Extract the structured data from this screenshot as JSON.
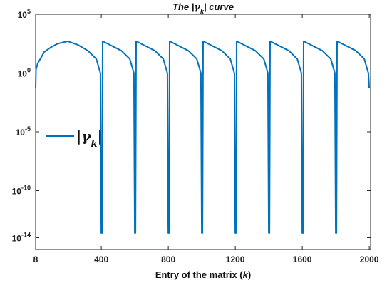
{
  "chart_data": {
    "type": "line",
    "title": {
      "prefix": "The |",
      "symbol": "γ",
      "subscript": "k",
      "suffix": "| curve"
    },
    "xlabel": {
      "prefix": "Entry of the matrix (",
      "symbol": "k",
      "suffix": ")"
    },
    "ylabel": "",
    "y_scale": "log",
    "xlim": [
      8,
      2008
    ],
    "ylim_exponent": [
      -15,
      5
    ],
    "x_ticks": [
      {
        "value": 8,
        "label": "8"
      },
      {
        "value": 400,
        "label": "400"
      },
      {
        "value": 800,
        "label": "800"
      },
      {
        "value": 1200,
        "label": "1200"
      },
      {
        "value": 1600,
        "label": "1600"
      },
      {
        "value": 2000,
        "label": "2000"
      }
    ],
    "y_ticks": [
      {
        "exponent": 5,
        "label": "5"
      },
      {
        "exponent": 0,
        "label": "0"
      },
      {
        "exponent": -5,
        "label": "-5"
      },
      {
        "exponent": -10,
        "label": "-10"
      },
      {
        "exponent": -14,
        "label": "-14"
      }
    ],
    "y_tick_base": "10",
    "grid": false,
    "legend_position": "left-middle",
    "series": [
      {
        "name_prefix": "|",
        "name_symbol": "γ",
        "name_subscript": "k",
        "name_suffix": "|",
        "color": "#0072BD",
        "points_log10": [
          [
            8,
            -1.3
          ],
          [
            10,
            0.3
          ],
          [
            20,
            0.8
          ],
          [
            60,
            1.8
          ],
          [
            100,
            2.2
          ],
          [
            140,
            2.5
          ],
          [
            200,
            2.7
          ],
          [
            260,
            2.4
          ],
          [
            320,
            1.9
          ],
          [
            370,
            1.2
          ],
          [
            395,
            0.0
          ],
          [
            400,
            -13.6
          ],
          [
            404,
            -13.6
          ],
          [
            408,
            2.7
          ],
          [
            450,
            2.4
          ],
          [
            520,
            1.9
          ],
          [
            570,
            1.2
          ],
          [
            595,
            0.0
          ],
          [
            600,
            -13.6
          ],
          [
            604,
            -13.6
          ],
          [
            608,
            2.7
          ],
          [
            650,
            2.4
          ],
          [
            720,
            1.9
          ],
          [
            770,
            1.2
          ],
          [
            795,
            0.0
          ],
          [
            800,
            -13.6
          ],
          [
            804,
            -13.6
          ],
          [
            808,
            2.7
          ],
          [
            850,
            2.4
          ],
          [
            920,
            1.9
          ],
          [
            970,
            1.2
          ],
          [
            995,
            0.0
          ],
          [
            1000,
            -13.6
          ],
          [
            1004,
            -13.6
          ],
          [
            1008,
            2.7
          ],
          [
            1050,
            2.4
          ],
          [
            1120,
            1.9
          ],
          [
            1170,
            1.2
          ],
          [
            1195,
            0.0
          ],
          [
            1200,
            -13.6
          ],
          [
            1204,
            -13.6
          ],
          [
            1208,
            2.7
          ],
          [
            1250,
            2.4
          ],
          [
            1320,
            1.9
          ],
          [
            1370,
            1.2
          ],
          [
            1395,
            0.0
          ],
          [
            1400,
            -13.6
          ],
          [
            1404,
            -13.6
          ],
          [
            1408,
            2.7
          ],
          [
            1450,
            2.4
          ],
          [
            1520,
            1.9
          ],
          [
            1570,
            1.2
          ],
          [
            1595,
            0.0
          ],
          [
            1600,
            -13.6
          ],
          [
            1604,
            -13.6
          ],
          [
            1608,
            2.7
          ],
          [
            1650,
            2.4
          ],
          [
            1720,
            1.9
          ],
          [
            1770,
            1.2
          ],
          [
            1795,
            0.0
          ],
          [
            1800,
            -13.6
          ],
          [
            1804,
            -13.6
          ],
          [
            1808,
            2.7
          ],
          [
            1850,
            2.4
          ],
          [
            1920,
            1.9
          ],
          [
            1970,
            1.2
          ],
          [
            1995,
            0.0
          ],
          [
            2000,
            -1.3
          ]
        ]
      }
    ]
  }
}
